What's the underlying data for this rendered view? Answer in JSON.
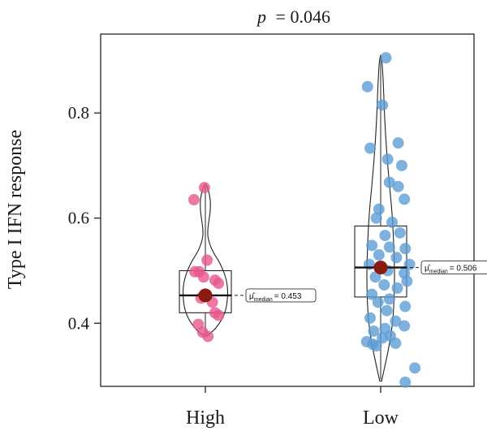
{
  "chart_data": {
    "type": "violin",
    "title": "p = 0.046",
    "title_prefix": "p",
    "title_value": "= 0.046",
    "ylabel": "Type I IFN response",
    "xlabel": "",
    "ylim": [
      0.28,
      0.95
    ],
    "yticks": [
      0.4,
      0.6,
      0.8
    ],
    "ytick_labels": [
      "0.4",
      "0.6",
      "0.8"
    ],
    "categories": [
      "High",
      "Low"
    ],
    "grid": false,
    "groups": [
      {
        "category": "High",
        "color": "#e8558a",
        "median": 0.453,
        "median_label_symbol": "μ̂",
        "median_label_sub": "median",
        "median_label_value": "= 0.453",
        "q1": 0.42,
        "q3": 0.5,
        "violin_min": 0.375,
        "violin_max": 0.665,
        "points": [
          {
            "x": -0.13,
            "y": 0.635
          },
          {
            "x": -0.01,
            "y": 0.658
          },
          {
            "x": -0.12,
            "y": 0.498
          },
          {
            "x": -0.07,
            "y": 0.498
          },
          {
            "x": 0.02,
            "y": 0.52
          },
          {
            "x": 0.11,
            "y": 0.482
          },
          {
            "x": 0.15,
            "y": 0.476
          },
          {
            "x": -0.02,
            "y": 0.488
          },
          {
            "x": -0.05,
            "y": 0.448
          },
          {
            "x": 0.08,
            "y": 0.44
          },
          {
            "x": 0.11,
            "y": 0.42
          },
          {
            "x": 0.15,
            "y": 0.415
          },
          {
            "x": -0.08,
            "y": 0.398
          },
          {
            "x": -0.03,
            "y": 0.383
          },
          {
            "x": 0.03,
            "y": 0.375
          }
        ]
      },
      {
        "category": "Low",
        "color": "#5b9bd5",
        "median": 0.506,
        "median_label_symbol": "μ̂",
        "median_label_sub": "median",
        "median_label_value": "= 0.506",
        "q1": 0.45,
        "q3": 0.585,
        "violin_min": 0.29,
        "violin_max": 0.91,
        "points": [
          {
            "x": 0.06,
            "y": 0.905
          },
          {
            "x": -0.15,
            "y": 0.85
          },
          {
            "x": 0.02,
            "y": 0.815
          },
          {
            "x": -0.12,
            "y": 0.733
          },
          {
            "x": 0.2,
            "y": 0.743
          },
          {
            "x": 0.08,
            "y": 0.712
          },
          {
            "x": 0.24,
            "y": 0.7
          },
          {
            "x": 0.1,
            "y": 0.668
          },
          {
            "x": 0.2,
            "y": 0.66
          },
          {
            "x": -0.02,
            "y": 0.617
          },
          {
            "x": 0.27,
            "y": 0.636
          },
          {
            "x": -0.05,
            "y": 0.6
          },
          {
            "x": 0.13,
            "y": 0.592
          },
          {
            "x": 0.05,
            "y": 0.567
          },
          {
            "x": 0.22,
            "y": 0.572
          },
          {
            "x": -0.1,
            "y": 0.548
          },
          {
            "x": 0.1,
            "y": 0.545
          },
          {
            "x": 0.28,
            "y": 0.542
          },
          {
            "x": -0.02,
            "y": 0.53
          },
          {
            "x": 0.18,
            "y": 0.525
          },
          {
            "x": -0.13,
            "y": 0.512
          },
          {
            "x": 0.33,
            "y": 0.512
          },
          {
            "x": 0.08,
            "y": 0.5
          },
          {
            "x": 0.27,
            "y": 0.495
          },
          {
            "x": -0.06,
            "y": 0.488
          },
          {
            "x": 0.3,
            "y": 0.48
          },
          {
            "x": 0.04,
            "y": 0.473
          },
          {
            "x": 0.19,
            "y": 0.467
          },
          {
            "x": -0.1,
            "y": 0.455
          },
          {
            "x": 0.1,
            "y": 0.446
          },
          {
            "x": -0.03,
            "y": 0.44
          },
          {
            "x": 0.28,
            "y": 0.432
          },
          {
            "x": 0.07,
            "y": 0.424
          },
          {
            "x": -0.12,
            "y": 0.41
          },
          {
            "x": 0.17,
            "y": 0.404
          },
          {
            "x": 0.27,
            "y": 0.395
          },
          {
            "x": 0.05,
            "y": 0.39
          },
          {
            "x": -0.08,
            "y": 0.385
          },
          {
            "x": 0.11,
            "y": 0.376
          },
          {
            "x": 0.02,
            "y": 0.372
          },
          {
            "x": -0.16,
            "y": 0.365
          },
          {
            "x": -0.09,
            "y": 0.36
          },
          {
            "x": -0.05,
            "y": 0.357
          },
          {
            "x": 0.17,
            "y": 0.362
          },
          {
            "x": 0.39,
            "y": 0.315
          },
          {
            "x": 0.28,
            "y": 0.288
          }
        ]
      }
    ],
    "median_point_color": "#8b1a10"
  }
}
